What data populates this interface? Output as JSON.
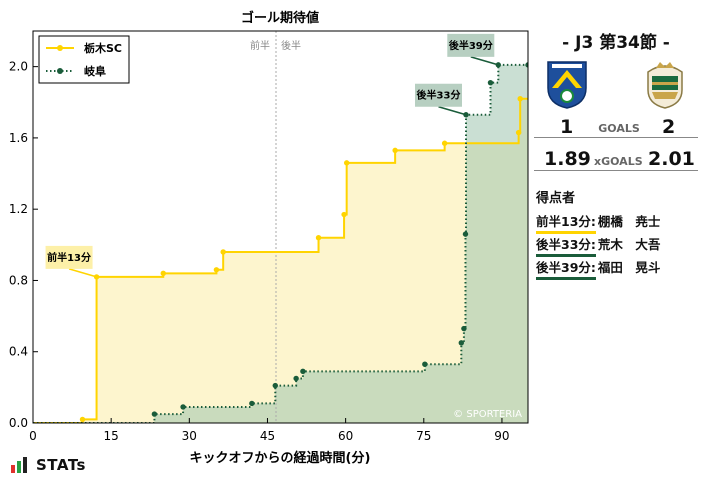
{
  "chart_data": {
    "type": "line",
    "title": "ゴール期待値",
    "xlabel": "キックオフからの経過時間(分)",
    "ylabel": "",
    "xlim": [
      0,
      95
    ],
    "ylim": [
      0,
      2.2
    ],
    "x_ticks": [
      0,
      15,
      30,
      45,
      60,
      75,
      90
    ],
    "y_ticks": [
      0.0,
      0.4,
      0.8,
      1.2,
      1.6,
      2.0
    ],
    "y_tick_labels": [
      "0.0",
      "0.4",
      "0.8",
      "1.2",
      "1.6",
      "2.0"
    ],
    "half_labels": [
      "前半",
      "後半"
    ],
    "half_time_x": 45,
    "legend_position": "top-left",
    "credit": "© SPORTERIA",
    "series": [
      {
        "name": "栃木SC",
        "color": "#ffd400",
        "fill": "#fdf3c6",
        "line_style": "solid",
        "points": [
          [
            9.5,
            0.02
          ],
          [
            12.2,
            0.82
          ],
          [
            25,
            0.84
          ],
          [
            35.2,
            0.86
          ],
          [
            36.5,
            0.96
          ],
          [
            54.8,
            1.04
          ],
          [
            59.7,
            1.17
          ],
          [
            60.2,
            1.46
          ],
          [
            69.5,
            1.53
          ],
          [
            79,
            1.57
          ],
          [
            93.2,
            1.63
          ],
          [
            93.5,
            1.82
          ],
          [
            101.2,
            1.88
          ]
        ],
        "end_x": 101.8
      },
      {
        "name": "岐阜",
        "color": "#1a5c3a",
        "fill": "#9ec4ae",
        "line_style": "dotted",
        "points": [
          [
            23.3,
            0.05
          ],
          [
            28.8,
            0.09
          ],
          [
            42,
            0.11
          ],
          [
            46.5,
            0.21
          ],
          [
            50.5,
            0.25
          ],
          [
            51.8,
            0.29
          ],
          [
            75.2,
            0.33
          ],
          [
            82.2,
            0.45
          ],
          [
            82.7,
            0.53
          ],
          [
            83,
            1.06
          ],
          [
            83.1,
            1.73
          ],
          [
            87.8,
            1.91
          ],
          [
            89.3,
            2.01
          ],
          [
            95,
            2.01
          ]
        ],
        "end_x": 95
      }
    ],
    "annotations": [
      {
        "label": "前半13分",
        "x": 12.2,
        "y": 0.82,
        "series": 0
      },
      {
        "label": "後半33分",
        "x": 83.1,
        "y": 1.73,
        "series": 1
      },
      {
        "label": "後半39分",
        "x": 89.3,
        "y": 2.01,
        "series": 1
      }
    ]
  },
  "panel": {
    "match_title": "- J3 第34節 -",
    "home_score": "1",
    "away_score": "2",
    "goals_label": "GOALS",
    "home_xg": "1.89",
    "away_xg": "2.01",
    "xgoals_label": "xGOALS",
    "scorers_title": "得点者",
    "scorers": [
      {
        "time": "前半13分:",
        "name": "棚橋　尭士",
        "team": "home"
      },
      {
        "time": "後半33分:",
        "name": "荒木　大吾",
        "team": "away"
      },
      {
        "time": "後半39分:",
        "name": "福田　晃斗",
        "team": "away"
      }
    ],
    "home_crest": "tochigi-sc-crest",
    "away_crest": "fc-gifu-crest"
  },
  "footer": {
    "logo_text": "STATs",
    "logo_icon": "bar-chart-icon"
  }
}
